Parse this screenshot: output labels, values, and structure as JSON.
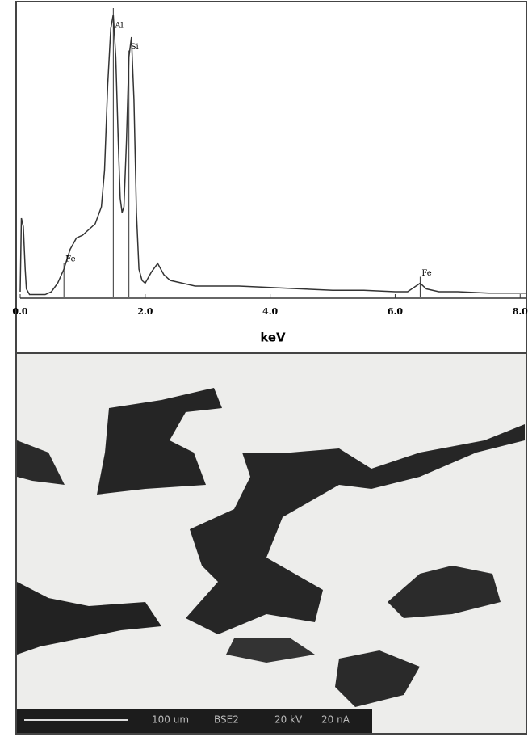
{
  "chart_data": {
    "type": "line",
    "x_label": "keV",
    "x": [
      0,
      0.02,
      0.05,
      0.08,
      0.1,
      0.15,
      0.2,
      0.3,
      0.4,
      0.5,
      0.6,
      0.7,
      0.8,
      0.9,
      1.0,
      1.1,
      1.2,
      1.3,
      1.35,
      1.4,
      1.45,
      1.49,
      1.53,
      1.57,
      1.6,
      1.63,
      1.66,
      1.7,
      1.74,
      1.78,
      1.82,
      1.86,
      1.9,
      1.95,
      2.0,
      2.1,
      2.2,
      2.3,
      2.4,
      2.6,
      2.8,
      3.0,
      3.5,
      4.0,
      4.5,
      5.0,
      5.5,
      6.0,
      6.2,
      6.4,
      6.5,
      6.7,
      7.0,
      7.5,
      8.0,
      8.1
    ],
    "values": [
      2,
      28,
      25,
      10,
      3,
      1,
      1,
      1,
      1,
      2,
      5,
      10,
      17,
      21,
      22,
      24,
      26,
      32,
      45,
      75,
      95,
      100,
      85,
      55,
      35,
      30,
      32,
      55,
      85,
      92,
      70,
      30,
      10,
      6,
      5,
      9,
      12,
      8,
      6,
      5,
      4,
      4,
      4,
      3.5,
      3,
      2.5,
      2.5,
      2,
      2,
      5,
      3,
      2,
      2,
      1.5,
      1.5,
      1.5
    ],
    "color": "#333333",
    "xlim": [
      0,
      8.1
    ],
    "ylim": [
      0,
      100
    ],
    "xticks": [
      {
        "value": 0,
        "label": "0.0"
      },
      {
        "value": 2,
        "label": "2.0"
      },
      {
        "value": 4,
        "label": "4.0"
      },
      {
        "value": 6,
        "label": "6.0"
      },
      {
        "value": 8,
        "label": "8.0"
      }
    ],
    "annotations": [
      {
        "text": "Al",
        "x": 1.49
      },
      {
        "text": "Si",
        "x": 1.74
      },
      {
        "text": "Fe",
        "x": 0.7
      },
      {
        "text": "Fe",
        "x": 6.4
      }
    ]
  },
  "image": {
    "scale_bar": "100 um",
    "detector": "BSE2",
    "voltage": "20 kV",
    "current": "20 nA"
  }
}
